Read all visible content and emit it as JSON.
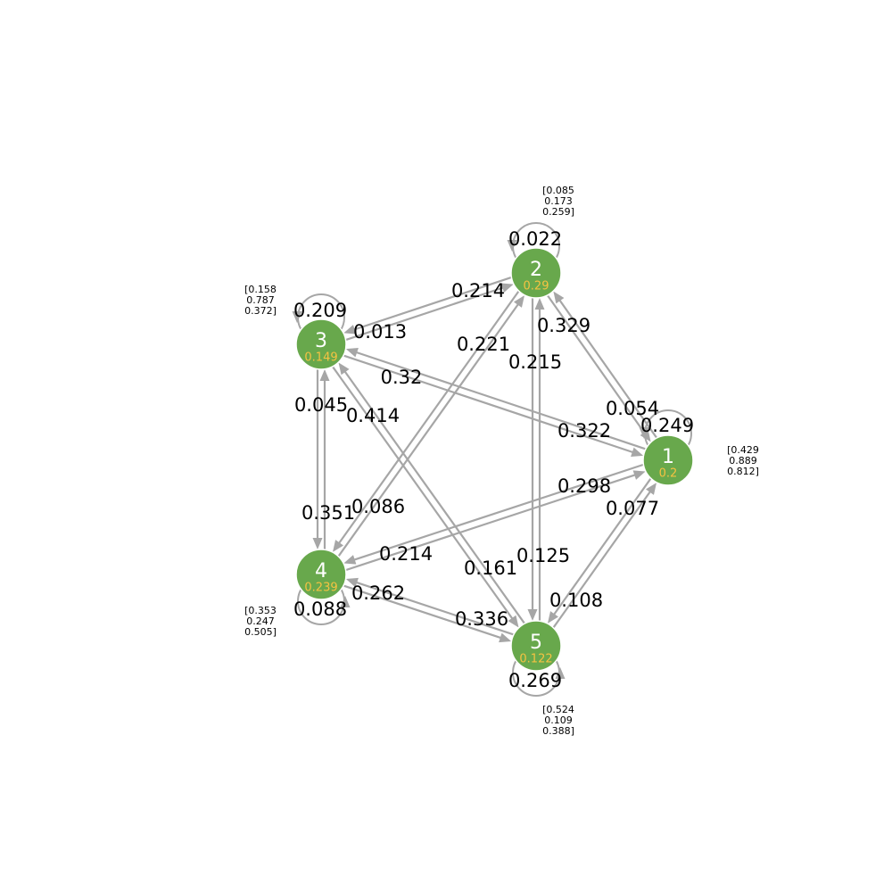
{
  "colors": {
    "node_fill": "#68a84c",
    "node_id_text": "#ffffff",
    "node_value_text": "#f5c242",
    "edge": "#a6a6a6",
    "label_text": "#000000"
  },
  "nodes": [
    {
      "id": "1",
      "value": "0.2",
      "vector": [
        "[0.429",
        "0.889",
        "0.812]"
      ]
    },
    {
      "id": "2",
      "value": "0.29",
      "vector": [
        "[0.085",
        "0.173",
        "0.259]"
      ]
    },
    {
      "id": "3",
      "value": "0.149",
      "vector": [
        "[0.158",
        "0.787",
        "0.372]"
      ]
    },
    {
      "id": "4",
      "value": "0.239",
      "vector": [
        "[0.353",
        "0.247",
        "0.505]"
      ]
    },
    {
      "id": "5",
      "value": "0.122",
      "vector": [
        "[0.524",
        "0.109",
        "0.388]"
      ]
    }
  ],
  "self_loops": [
    {
      "node": "1",
      "weight": "0.249"
    },
    {
      "node": "2",
      "weight": "0.022"
    },
    {
      "node": "3",
      "weight": "0.209"
    },
    {
      "node": "4",
      "weight": "0.088"
    },
    {
      "node": "5",
      "weight": "0.269"
    }
  ],
  "edges": [
    {
      "from": "1",
      "to": "2",
      "weight": "0.329"
    },
    {
      "from": "2",
      "to": "1",
      "weight": "0.054"
    },
    {
      "from": "1",
      "to": "3",
      "weight": "0.32"
    },
    {
      "from": "3",
      "to": "1",
      "weight": "0.322"
    },
    {
      "from": "1",
      "to": "4",
      "weight": "0.214"
    },
    {
      "from": "4",
      "to": "1",
      "weight": "0.298"
    },
    {
      "from": "1",
      "to": "5",
      "weight": "0.108"
    },
    {
      "from": "5",
      "to": "1",
      "weight": "0.077"
    },
    {
      "from": "3",
      "to": "2",
      "weight": "0.214"
    },
    {
      "from": "2",
      "to": "3",
      "weight": "0.013"
    },
    {
      "from": "2",
      "to": "4",
      "weight": "0.086"
    },
    {
      "from": "4",
      "to": "2",
      "weight": "0.221"
    },
    {
      "from": "2",
      "to": "5",
      "weight": "0.125"
    },
    {
      "from": "5",
      "to": "2",
      "weight": "0.215"
    },
    {
      "from": "3",
      "to": "4",
      "weight": "0.351"
    },
    {
      "from": "4",
      "to": "3",
      "weight": "0.045"
    },
    {
      "from": "3",
      "to": "5",
      "weight": "0.161"
    },
    {
      "from": "5",
      "to": "3",
      "weight": "0.414"
    },
    {
      "from": "4",
      "to": "5",
      "weight": "0.336"
    },
    {
      "from": "5",
      "to": "4",
      "weight": "0.262"
    }
  ]
}
